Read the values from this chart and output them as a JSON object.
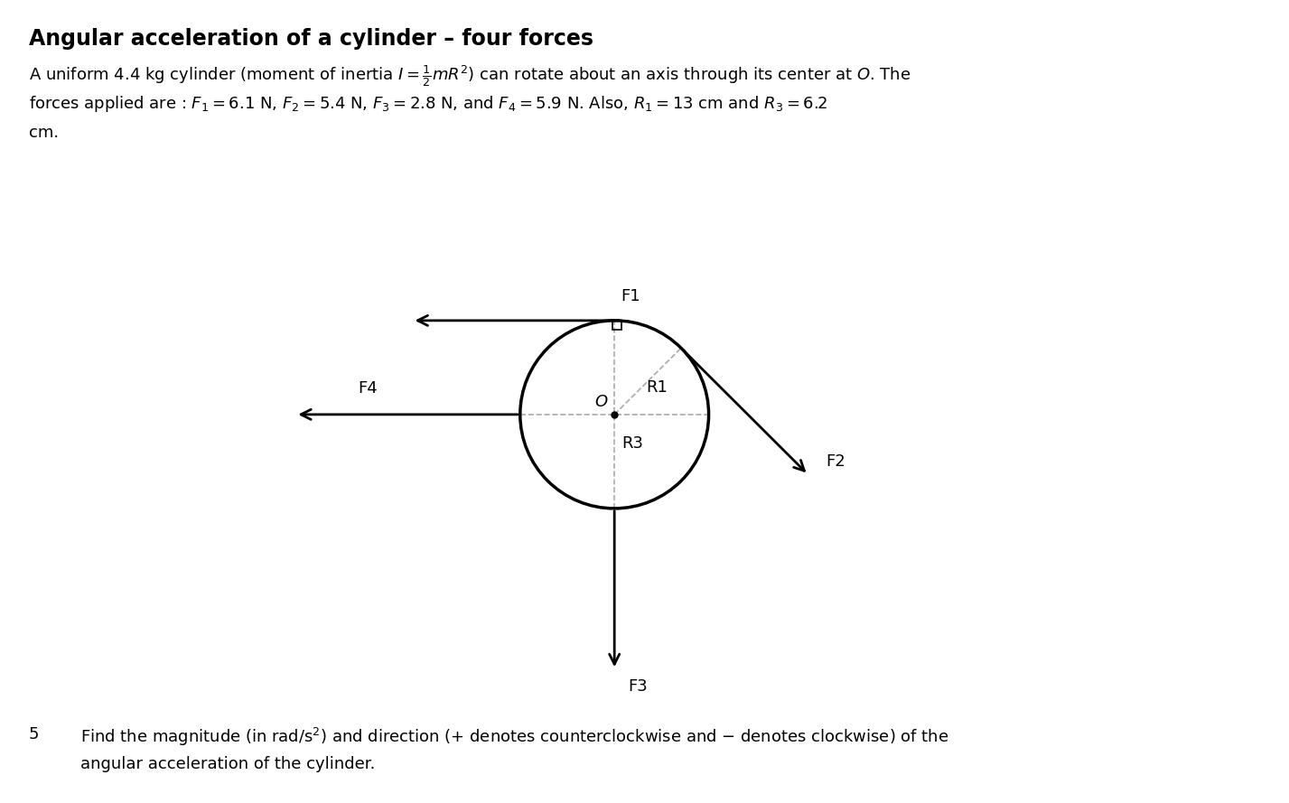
{
  "title": "Angular acceleration of a cylinder – four forces",
  "title_fontsize": 17,
  "title_fontweight": "bold",
  "desc1": "A uniform 4.4 kg cylinder (moment of inertia $I = \\frac{1}{2}mR^2$) can rotate about an axis through its center at $O$. The",
  "desc2": "forces applied are : $F_1 = 6.1$ N, $F_2 = 5.4$ N, $F_3 = 2.8$ N, and $F_4 = 5.9$ N. Also, $R_1 = 13$ cm and $R_3 = 6.2$",
  "desc3": "cm.",
  "q_num": "5",
  "q_text1": "Find the magnitude (in rad/s$^2$) and direction ($+$ denotes counterclockwise and $-$ denotes clockwise) of the",
  "q_text2": "angular acceleration of the cylinder.",
  "bg_color": "#ffffff",
  "text_color": "#000000",
  "circle_color": "#000000",
  "circle_lw": 2.5,
  "dashed_color": "#aaaaaa",
  "arrow_lw": 2.0,
  "fontsize_labels": 13,
  "fontsize_text": 13
}
